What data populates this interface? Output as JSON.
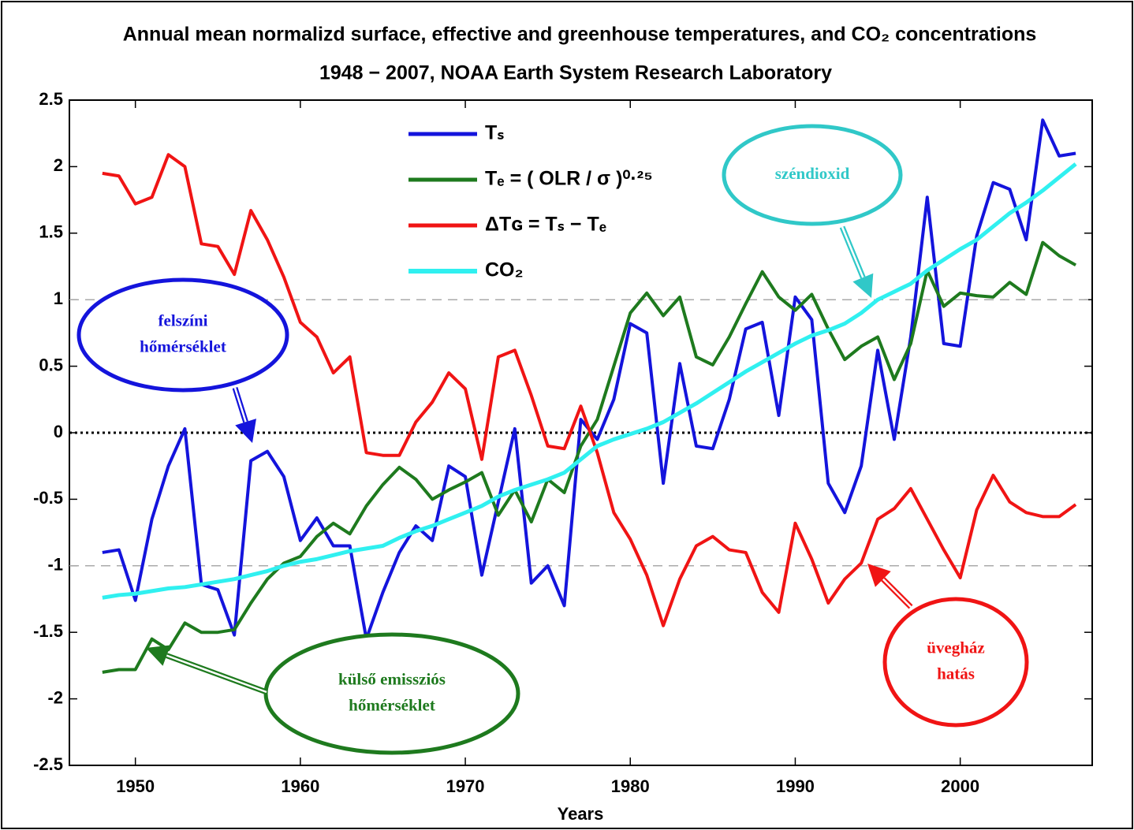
{
  "chart_data": {
    "type": "line",
    "title": "Annual mean normalizd surface, effective and greenhouse temperatures, and CO₂ concentrations",
    "subtitle": "1948 − 2007,  NOAA Earth System Research Laboratory",
    "x_label": "Years",
    "x": [
      1948,
      1949,
      1950,
      1951,
      1952,
      1953,
      1954,
      1955,
      1956,
      1957,
      1958,
      1959,
      1960,
      1961,
      1962,
      1963,
      1964,
      1965,
      1966,
      1967,
      1968,
      1969,
      1970,
      1971,
      1972,
      1973,
      1974,
      1975,
      1976,
      1977,
      1978,
      1979,
      1980,
      1981,
      1982,
      1983,
      1984,
      1985,
      1986,
      1987,
      1988,
      1989,
      1990,
      1991,
      1992,
      1993,
      1994,
      1995,
      1996,
      1997,
      1998,
      1999,
      2000,
      2001,
      2002,
      2003,
      2004,
      2005,
      2006,
      2007
    ],
    "series": [
      {
        "name": "Tₛ",
        "color": "#1414dc",
        "values": [
          -0.9,
          -0.88,
          -1.26,
          -0.65,
          -0.25,
          0.03,
          -1.14,
          -1.18,
          -1.52,
          -0.21,
          -0.14,
          -0.33,
          -0.81,
          -0.64,
          -0.85,
          -0.85,
          -1.55,
          -1.2,
          -0.9,
          -0.7,
          -0.81,
          -0.25,
          -0.33,
          -1.07,
          -0.52,
          0.03,
          -1.13,
          -1.0,
          -1.3,
          0.1,
          -0.05,
          0.25,
          0.82,
          0.75,
          -0.38,
          0.52,
          -0.1,
          -0.12,
          0.25,
          0.78,
          0.83,
          0.13,
          1.02,
          0.85,
          -0.38,
          -0.6,
          -0.25,
          0.62,
          -0.05,
          0.72,
          1.77,
          0.67,
          0.65,
          1.48,
          1.88,
          1.83,
          1.45,
          2.35,
          2.08,
          2.1
        ]
      },
      {
        "name": "Tₑ = ( OLR / σ )⁰·²⁵",
        "color": "#1e7a1e",
        "values": [
          -1.8,
          -1.78,
          -1.78,
          -1.55,
          -1.63,
          -1.43,
          -1.5,
          -1.5,
          -1.48,
          -1.28,
          -1.1,
          -0.98,
          -0.93,
          -0.78,
          -0.68,
          -0.76,
          -0.55,
          -0.39,
          -0.26,
          -0.35,
          -0.5,
          -0.43,
          -0.37,
          -0.3,
          -0.62,
          -0.43,
          -0.67,
          -0.35,
          -0.45,
          -0.1,
          0.1,
          0.5,
          0.9,
          1.05,
          0.88,
          1.02,
          0.57,
          0.51,
          0.72,
          0.97,
          1.21,
          1.02,
          0.92,
          1.04,
          0.78,
          0.55,
          0.65,
          0.72,
          0.4,
          0.67,
          1.22,
          0.95,
          1.05,
          1.03,
          1.02,
          1.13,
          1.04,
          1.43,
          1.33,
          1.26
        ]
      },
      {
        "name": "ΔTɢ = Tₛ − Tₑ",
        "color": "#f01414",
        "values": [
          1.95,
          1.93,
          1.72,
          1.77,
          2.09,
          2.0,
          1.42,
          1.4,
          1.19,
          1.67,
          1.45,
          1.17,
          0.83,
          0.72,
          0.45,
          0.57,
          -0.15,
          -0.17,
          -0.17,
          0.08,
          0.23,
          0.45,
          0.33,
          -0.2,
          0.57,
          0.62,
          0.28,
          -0.1,
          -0.12,
          0.2,
          -0.15,
          -0.6,
          -0.8,
          -1.07,
          -1.45,
          -1.1,
          -0.85,
          -0.78,
          -0.88,
          -0.9,
          -1.2,
          -1.35,
          -0.68,
          -0.95,
          -1.28,
          -1.1,
          -0.98,
          -0.65,
          -0.57,
          -0.42,
          -0.65,
          -0.88,
          -1.09,
          -0.58,
          -0.32,
          -0.52,
          -0.6,
          -0.63,
          -0.63,
          -0.54
        ]
      },
      {
        "name": "CO₂",
        "color": "#30f0f0",
        "values": [
          -1.24,
          -1.22,
          -1.21,
          -1.19,
          -1.17,
          -1.16,
          -1.14,
          -1.12,
          -1.1,
          -1.07,
          -1.04,
          -1.0,
          -0.97,
          -0.95,
          -0.92,
          -0.89,
          -0.87,
          -0.85,
          -0.79,
          -0.74,
          -0.7,
          -0.65,
          -0.6,
          -0.55,
          -0.48,
          -0.43,
          -0.39,
          -0.35,
          -0.3,
          -0.2,
          -0.1,
          -0.05,
          -0.01,
          0.03,
          0.08,
          0.15,
          0.22,
          0.3,
          0.38,
          0.46,
          0.53,
          0.6,
          0.67,
          0.73,
          0.77,
          0.82,
          0.9,
          1.0,
          1.06,
          1.12,
          1.22,
          1.3,
          1.38,
          1.45,
          1.55,
          1.65,
          1.73,
          1.82,
          1.92,
          2.02
        ]
      }
    ],
    "xlim": [
      1946,
      2008
    ],
    "xticks": [
      1950,
      1960,
      1970,
      1980,
      1990,
      2000
    ],
    "ylim": [
      -2.5,
      2.5
    ],
    "yticks": [
      -2.5,
      -2,
      -1.5,
      -1,
      -0.5,
      0,
      0.5,
      1,
      1.5,
      2,
      2.5
    ],
    "reference_lines": [
      {
        "value": -1,
        "style": "dashed"
      },
      {
        "value": 0,
        "style": "dotted"
      },
      {
        "value": 1,
        "style": "dashed"
      }
    ],
    "legend": "upper center",
    "annotations": [
      {
        "lines": [
          "felszíni",
          "hőmérséklet"
        ],
        "color": "#1414dc"
      },
      {
        "lines": [
          "széndioxid"
        ],
        "color": "#30c8c8"
      },
      {
        "lines": [
          "külső emissziós",
          "hőmérséklet"
        ],
        "color": "#1e7a1e"
      },
      {
        "lines": [
          "üvegház",
          "hatás"
        ],
        "color": "#f01414"
      }
    ]
  }
}
